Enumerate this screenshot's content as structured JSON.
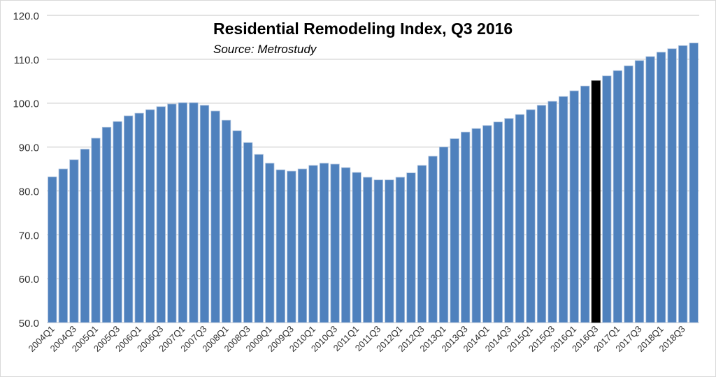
{
  "chart_data": {
    "type": "bar",
    "title": "Residential Remodeling Index, Q3 2016",
    "subtitle": "Source: Metrostudy",
    "xlabel": "",
    "ylabel": "",
    "ylim": [
      50,
      120
    ],
    "yticks": [
      "50.0",
      "60.0",
      "70.0",
      "80.0",
      "90.0",
      "100.0",
      "110.0",
      "120.0"
    ],
    "grid": true,
    "legend": "none",
    "colors": {
      "bar": "#4f81bd",
      "highlight": "#000000",
      "grid": "#d9d9d9"
    },
    "highlight_category": "2016Q3",
    "categories": [
      "2004Q1",
      "2004Q2",
      "2004Q3",
      "2004Q4",
      "2005Q1",
      "2005Q2",
      "2005Q3",
      "2005Q4",
      "2006Q1",
      "2006Q2",
      "2006Q3",
      "2006Q4",
      "2007Q1",
      "2007Q2",
      "2007Q3",
      "2007Q4",
      "2008Q1",
      "2008Q2",
      "2008Q3",
      "2008Q4",
      "2009Q1",
      "2009Q2",
      "2009Q3",
      "2009Q4",
      "2010Q1",
      "2010Q2",
      "2010Q3",
      "2010Q4",
      "2011Q1",
      "2011Q2",
      "2011Q3",
      "2011Q4",
      "2012Q1",
      "2012Q2",
      "2012Q3",
      "2012Q4",
      "2013Q1",
      "2013Q2",
      "2013Q3",
      "2013Q4",
      "2014Q1",
      "2014Q2",
      "2014Q3",
      "2014Q4",
      "2015Q1",
      "2015Q2",
      "2015Q3",
      "2015Q4",
      "2016Q1",
      "2016Q2",
      "2016Q3",
      "2016Q4",
      "2017Q1",
      "2017Q2",
      "2017Q3",
      "2017Q4",
      "2018Q1",
      "2018Q2",
      "2018Q3",
      "2018Q4"
    ],
    "values": [
      83.2,
      85.0,
      87.1,
      89.5,
      92.0,
      94.5,
      95.8,
      97.1,
      97.7,
      98.5,
      99.2,
      99.8,
      100.1,
      100.1,
      99.5,
      98.2,
      96.1,
      93.7,
      91.0,
      88.3,
      86.3,
      84.8,
      84.5,
      85.0,
      85.8,
      86.3,
      86.1,
      85.3,
      84.2,
      83.1,
      82.5,
      82.5,
      83.1,
      84.1,
      85.8,
      87.9,
      90.0,
      91.9,
      93.4,
      94.2,
      94.9,
      95.7,
      96.5,
      97.4,
      98.5,
      99.5,
      100.4,
      101.5,
      102.8,
      103.9,
      105.1,
      106.2,
      107.4,
      108.5,
      109.7,
      110.6,
      111.6,
      112.4,
      113.1,
      113.7
    ]
  }
}
